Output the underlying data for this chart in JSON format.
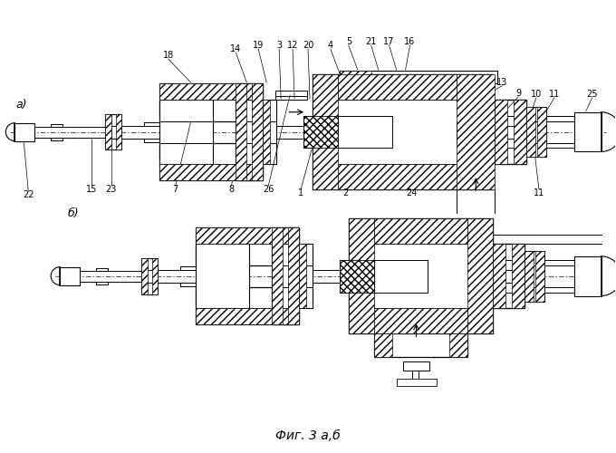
{
  "caption": "Фиг. 3 а,б",
  "bg_color": "#ffffff",
  "fig_width": 6.8,
  "fig_height": 5.0,
  "dpi": 100
}
